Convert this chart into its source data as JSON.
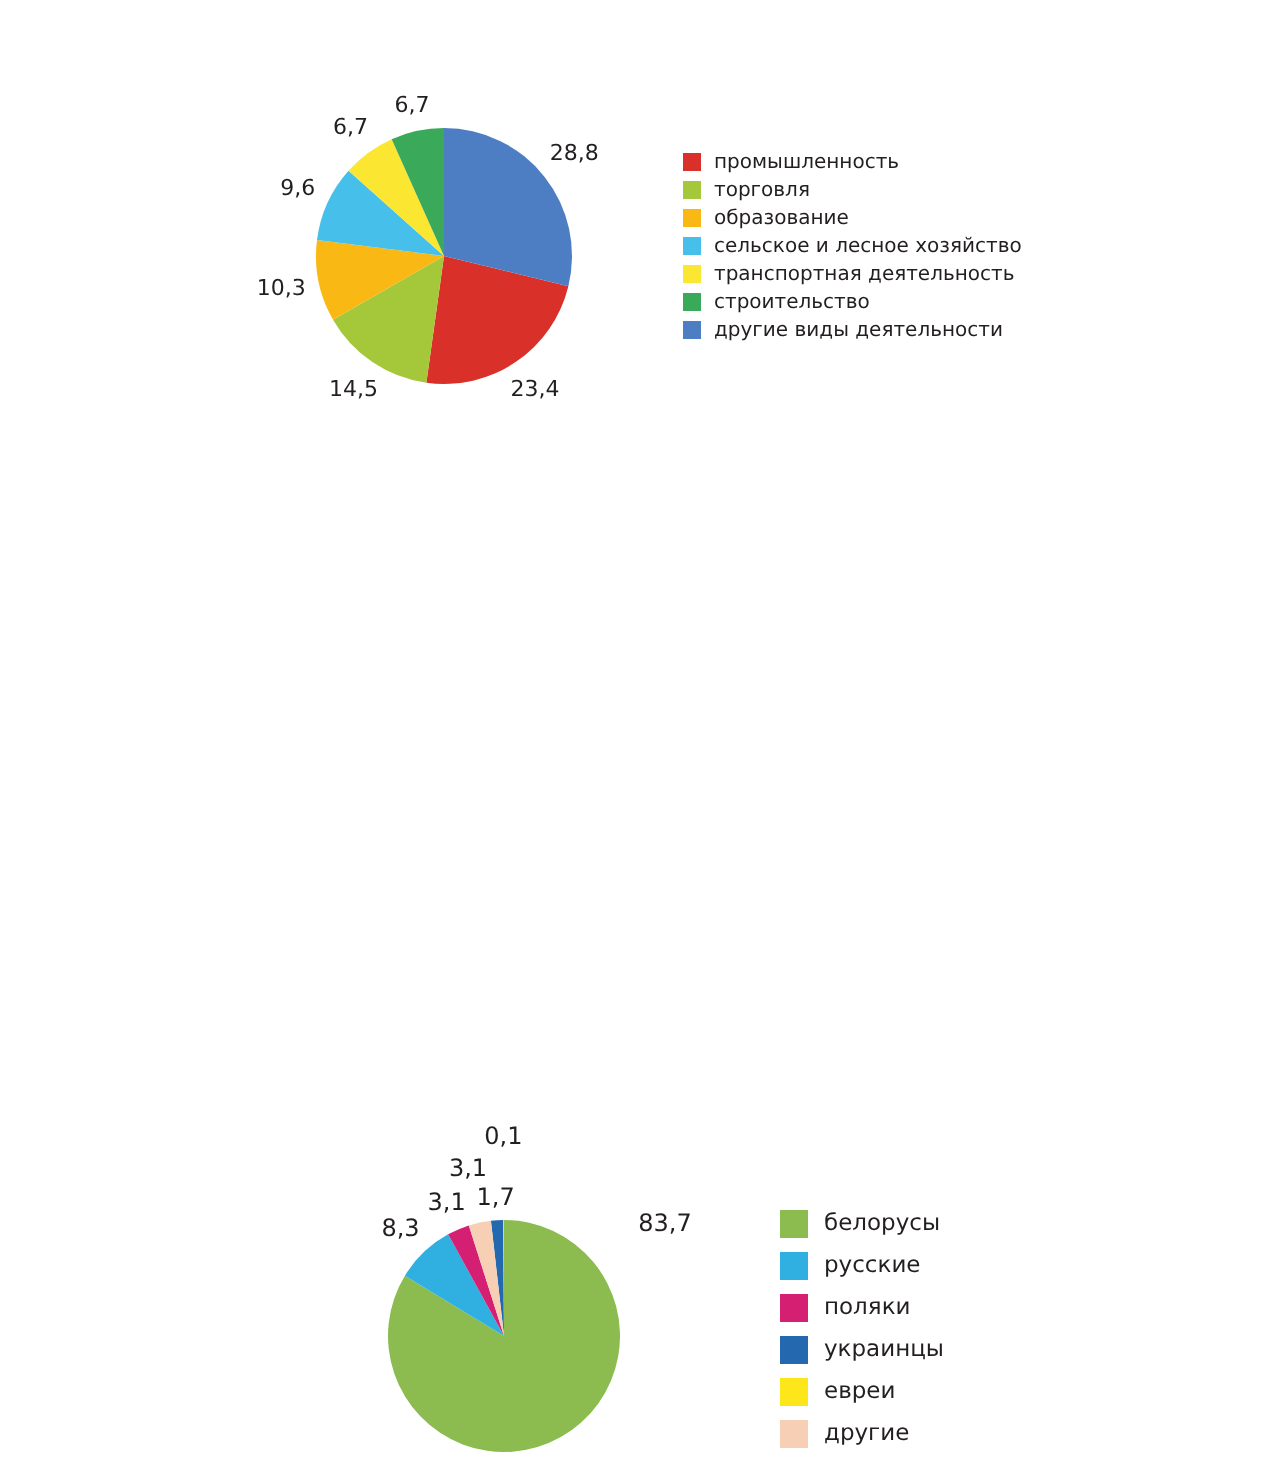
{
  "chart_data": [
    {
      "type": "pie",
      "categories": [
        "промышленность",
        "торговля",
        "образование",
        "сельское и лесное хозяйство",
        "транспортная деятельность",
        "строительство",
        "другие виды деятельности"
      ],
      "values": [
        23.4,
        14.5,
        10.3,
        9.6,
        6.7,
        6.7,
        28.8
      ],
      "colors": [
        "#d9302a",
        "#a5c73a",
        "#f9b814",
        "#46c0ea",
        "#fbe632",
        "#3aa95a",
        "#4d7ec4"
      ],
      "value_labels": [
        "23,4",
        "14,5",
        "10,3",
        "9,6",
        "6,7",
        "6,7",
        "28,8"
      ],
      "legend": "right"
    },
    {
      "type": "pie",
      "categories": [
        "белорусы",
        "русские",
        "поляки",
        "украинцы",
        "евреи",
        "другие"
      ],
      "values": [
        83.7,
        8.3,
        3.1,
        1.7,
        0.1,
        3.1
      ],
      "colors": [
        "#8cbb4f",
        "#2fb0e0",
        "#d51f72",
        "#2468b0",
        "#fde61a",
        "#f7cfb4"
      ],
      "value_labels": [
        "83,7",
        "8,3",
        "3,1",
        "1,7",
        "0,1",
        "3,1"
      ],
      "legend": "right"
    }
  ]
}
